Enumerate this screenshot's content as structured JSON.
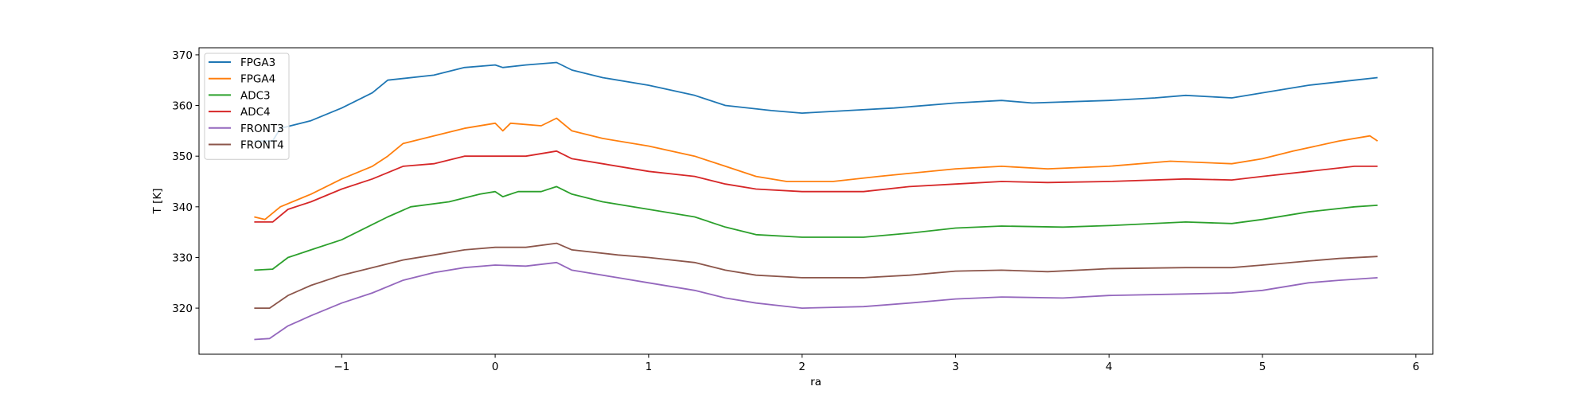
{
  "chart_data": {
    "type": "line",
    "title": "",
    "xlabel": "ra",
    "ylabel": "T [K]",
    "xlim": [
      -1.93,
      6.11
    ],
    "ylim": [
      310.9,
      371.4
    ],
    "xticks": [
      -1,
      0,
      1,
      2,
      3,
      4,
      5,
      6
    ],
    "yticks": [
      320,
      330,
      340,
      350,
      360,
      370
    ],
    "grid": false,
    "legend_position": "top-left",
    "series": [
      {
        "name": "FPGA3",
        "color": "#1f77b4",
        "x": [
          -1.57,
          -1.45,
          -1.4,
          -1.2,
          -1.0,
          -0.8,
          -0.7,
          -0.4,
          -0.2,
          0,
          0.05,
          0.2,
          0.4,
          0.5,
          0.7,
          1.0,
          1.3,
          1.5,
          1.8,
          2.0,
          2.3,
          2.6,
          3.0,
          3.3,
          3.5,
          4.0,
          4.3,
          4.5,
          4.8,
          5.0,
          5.3,
          5.6,
          5.75
        ],
        "y": [
          353,
          353,
          355.5,
          357,
          359.5,
          362.5,
          365,
          366,
          367.5,
          368,
          367.5,
          368,
          368.5,
          367,
          365.5,
          364,
          362,
          360,
          359,
          358.5,
          359,
          359.5,
          360.5,
          361,
          360.5,
          361,
          361.5,
          362,
          361.5,
          362.5,
          364,
          365,
          365.5
        ]
      },
      {
        "name": "FPGA4",
        "color": "#ff7f0e",
        "x": [
          -1.57,
          -1.5,
          -1.4,
          -1.2,
          -1.0,
          -0.8,
          -0.7,
          -0.6,
          -0.4,
          -0.2,
          0,
          0.05,
          0.1,
          0.3,
          0.4,
          0.5,
          0.7,
          1.0,
          1.3,
          1.5,
          1.7,
          1.9,
          2.2,
          2.5,
          3.0,
          3.3,
          3.6,
          4.0,
          4.4,
          4.8,
          5.0,
          5.2,
          5.5,
          5.7,
          5.75
        ],
        "y": [
          338,
          337.5,
          340,
          342.5,
          345.5,
          348,
          350,
          352.5,
          354,
          355.5,
          356.5,
          355,
          356.5,
          356,
          357.5,
          355,
          353.5,
          352,
          350,
          348,
          346,
          345,
          345,
          346,
          347.5,
          348,
          347.5,
          348,
          349,
          348.5,
          349.5,
          351,
          353,
          354,
          353
        ]
      },
      {
        "name": "ADC3",
        "color": "#2ca02c",
        "x": [
          -1.57,
          -1.45,
          -1.35,
          -1.2,
          -1.0,
          -0.8,
          -0.7,
          -0.55,
          -0.3,
          -0.1,
          0,
          0.05,
          0.15,
          0.3,
          0.4,
          0.5,
          0.7,
          1.0,
          1.3,
          1.5,
          1.7,
          2.0,
          2.4,
          2.7,
          3.0,
          3.3,
          3.7,
          4.0,
          4.5,
          4.8,
          5.0,
          5.3,
          5.6,
          5.75
        ],
        "y": [
          327.5,
          327.7,
          330,
          331.5,
          333.5,
          336.5,
          338,
          340,
          341,
          342.5,
          343,
          342,
          343,
          343,
          344,
          342.5,
          341,
          339.5,
          338,
          336,
          334.5,
          334,
          334,
          334.8,
          335.8,
          336.2,
          336,
          336.3,
          337,
          336.7,
          337.5,
          339,
          340,
          340.3
        ]
      },
      {
        "name": "ADC4",
        "color": "#d62728",
        "x": [
          -1.57,
          -1.45,
          -1.35,
          -1.2,
          -1.0,
          -0.8,
          -0.6,
          -0.4,
          -0.2,
          0,
          0.2,
          0.4,
          0.5,
          0.7,
          1.0,
          1.3,
          1.5,
          1.7,
          2.0,
          2.4,
          2.7,
          3.0,
          3.3,
          3.6,
          4.0,
          4.5,
          4.8,
          5.0,
          5.3,
          5.6,
          5.75
        ],
        "y": [
          337,
          337,
          339.5,
          341,
          343.5,
          345.5,
          348,
          348.5,
          350,
          350,
          350,
          351,
          349.5,
          348.5,
          347,
          346,
          344.5,
          343.5,
          343,
          343,
          344,
          344.5,
          345,
          344.8,
          345,
          345.5,
          345.3,
          346,
          347,
          348,
          348
        ]
      },
      {
        "name": "FRONT3",
        "color": "#9467bd",
        "x": [
          -1.57,
          -1.47,
          -1.35,
          -1.2,
          -1.0,
          -0.8,
          -0.6,
          -0.4,
          -0.2,
          0,
          0.2,
          0.4,
          0.5,
          0.8,
          1.0,
          1.3,
          1.5,
          1.7,
          2.0,
          2.4,
          2.7,
          3.0,
          3.3,
          3.7,
          4.0,
          4.5,
          4.8,
          5.0,
          5.3,
          5.5,
          5.75
        ],
        "y": [
          313.8,
          314,
          316.5,
          318.5,
          321,
          323,
          325.5,
          327,
          328,
          328.5,
          328.3,
          329,
          327.5,
          326,
          325,
          323.5,
          322,
          321,
          320,
          320.3,
          321,
          321.8,
          322.2,
          322,
          322.5,
          322.8,
          323,
          323.5,
          325,
          325.5,
          326
        ]
      },
      {
        "name": "FRONT4",
        "color": "#8c564b",
        "x": [
          -1.57,
          -1.47,
          -1.35,
          -1.2,
          -1.0,
          -0.8,
          -0.6,
          -0.4,
          -0.2,
          0,
          0.2,
          0.4,
          0.5,
          0.8,
          1.0,
          1.3,
          1.5,
          1.7,
          2.0,
          2.4,
          2.7,
          3.0,
          3.3,
          3.6,
          4.0,
          4.5,
          4.8,
          5.0,
          5.3,
          5.5,
          5.75
        ],
        "y": [
          320,
          320,
          322.5,
          324.5,
          326.5,
          328,
          329.5,
          330.5,
          331.5,
          332,
          332,
          332.8,
          331.5,
          330.5,
          330,
          329,
          327.5,
          326.5,
          326,
          326,
          326.5,
          327.3,
          327.5,
          327.2,
          327.8,
          328,
          328,
          328.5,
          329.3,
          329.8,
          330.2
        ]
      }
    ]
  }
}
